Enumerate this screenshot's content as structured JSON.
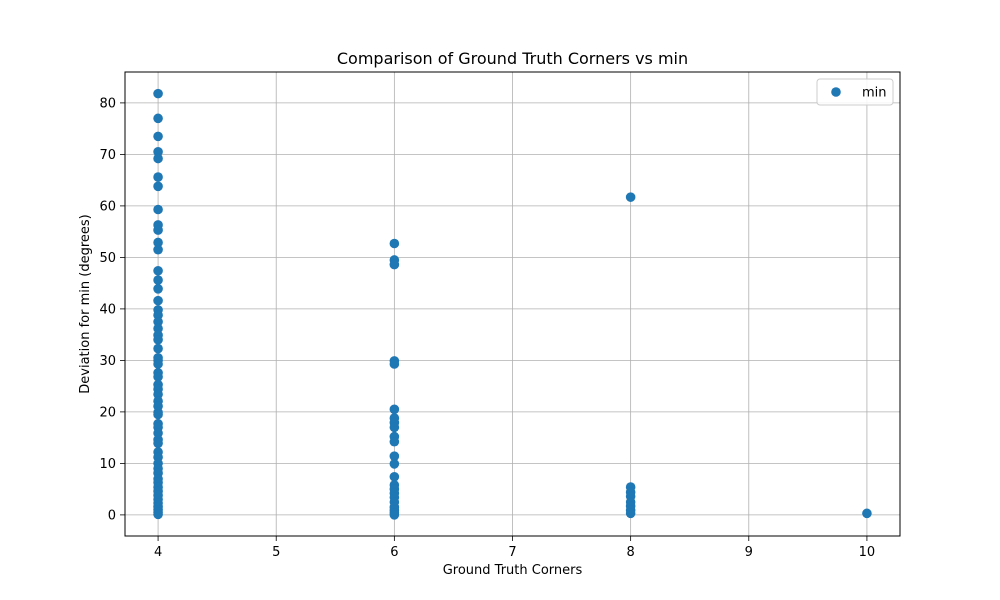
{
  "chart_data": {
    "type": "scatter",
    "title": "Comparison of Ground Truth Corners vs min",
    "xlabel": "Ground Truth Corners",
    "ylabel": "Deviation for min (degrees)",
    "xlim": [
      3.72,
      10.28
    ],
    "ylim": [
      -4.1,
      86.0
    ],
    "xticks": [
      4,
      5,
      6,
      7,
      8,
      9,
      10
    ],
    "yticks": [
      0,
      10,
      20,
      30,
      40,
      50,
      60,
      70,
      80
    ],
    "grid": true,
    "legend_position": "upper right",
    "series": [
      {
        "name": "min",
        "color": "#1f77b4",
        "points": [
          [
            4,
            81.8
          ],
          [
            4,
            77.0
          ],
          [
            4,
            73.5
          ],
          [
            4,
            70.5
          ],
          [
            4,
            69.2
          ],
          [
            4,
            65.6
          ],
          [
            4,
            63.8
          ],
          [
            4,
            59.3
          ],
          [
            4,
            56.3
          ],
          [
            4,
            55.3
          ],
          [
            4,
            52.9
          ],
          [
            4,
            51.5
          ],
          [
            4,
            47.4
          ],
          [
            4,
            45.6
          ],
          [
            4,
            43.9
          ],
          [
            4,
            41.6
          ],
          [
            4,
            39.8
          ],
          [
            4,
            38.8
          ],
          [
            4,
            37.5
          ],
          [
            4,
            36.2
          ],
          [
            4,
            34.9
          ],
          [
            4,
            34.0
          ],
          [
            4,
            32.3
          ],
          [
            4,
            30.5
          ],
          [
            4,
            30.0
          ],
          [
            4,
            29.3
          ],
          [
            4,
            27.6
          ],
          [
            4,
            26.8
          ],
          [
            4,
            25.3
          ],
          [
            4,
            24.4
          ],
          [
            4,
            23.4
          ],
          [
            4,
            22.1
          ],
          [
            4,
            21.1
          ],
          [
            4,
            19.9
          ],
          [
            4,
            19.5
          ],
          [
            4,
            17.7
          ],
          [
            4,
            17.0
          ],
          [
            4,
            15.9
          ],
          [
            4,
            14.6
          ],
          [
            4,
            13.9
          ],
          [
            4,
            12.2
          ],
          [
            4,
            11.2
          ],
          [
            4,
            10.0
          ],
          [
            4,
            9.0
          ],
          [
            4,
            8.1
          ],
          [
            4,
            7.0
          ],
          [
            4,
            6.3
          ],
          [
            4,
            5.4
          ],
          [
            4,
            4.6
          ],
          [
            4,
            3.8
          ],
          [
            4,
            3.0
          ],
          [
            4,
            2.3
          ],
          [
            4,
            1.6
          ],
          [
            4,
            1.0
          ],
          [
            4,
            0.5
          ],
          [
            4,
            0.1
          ],
          [
            6,
            52.7
          ],
          [
            6,
            49.5
          ],
          [
            6,
            48.6
          ],
          [
            6,
            29.9
          ],
          [
            6,
            29.3
          ],
          [
            6,
            20.5
          ],
          [
            6,
            18.8
          ],
          [
            6,
            17.9
          ],
          [
            6,
            17.0
          ],
          [
            6,
            15.2
          ],
          [
            6,
            14.2
          ],
          [
            6,
            11.4
          ],
          [
            6,
            9.9
          ],
          [
            6,
            7.4
          ],
          [
            6,
            5.8
          ],
          [
            6,
            5.0
          ],
          [
            6,
            4.2
          ],
          [
            6,
            3.4
          ],
          [
            6,
            2.5
          ],
          [
            6,
            1.5
          ],
          [
            6,
            0.9
          ],
          [
            6,
            0.4
          ],
          [
            6,
            0.0
          ],
          [
            8,
            61.7
          ],
          [
            8,
            5.4
          ],
          [
            8,
            4.4
          ],
          [
            8,
            3.6
          ],
          [
            8,
            2.5
          ],
          [
            8,
            1.7
          ],
          [
            8,
            0.9
          ],
          [
            8,
            0.3
          ],
          [
            10,
            0.3
          ]
        ]
      }
    ]
  }
}
